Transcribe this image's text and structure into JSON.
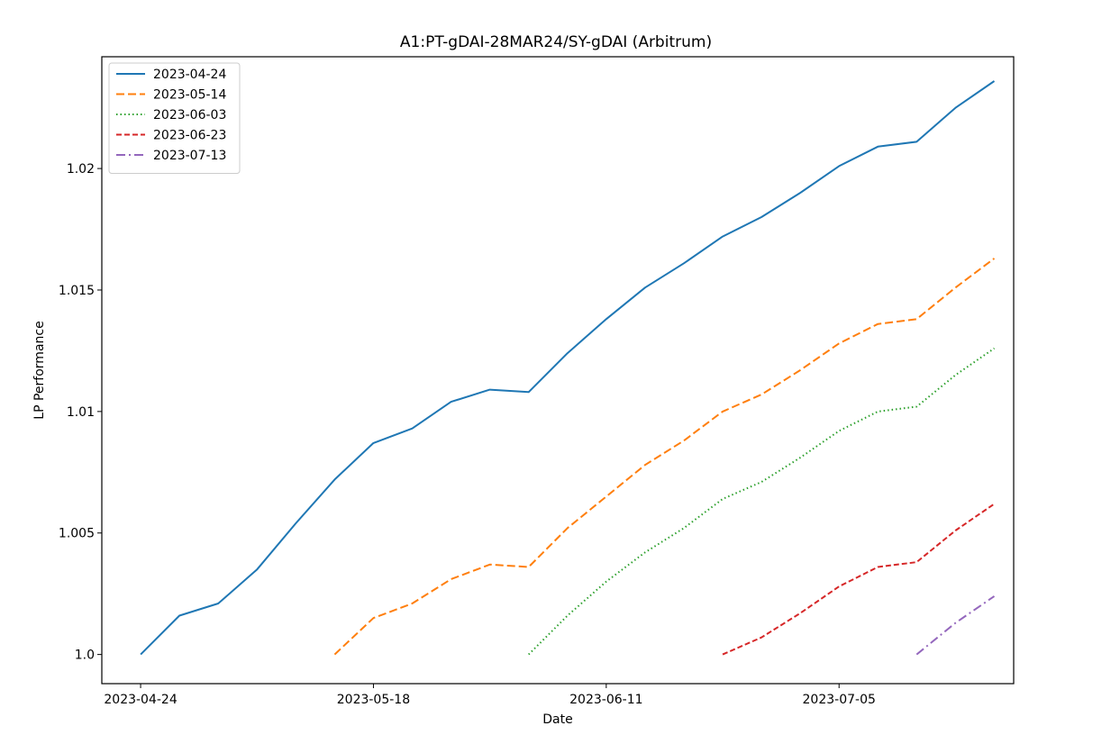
{
  "chart_data": {
    "type": "line",
    "title": "A1:PT-gDAI-28MAR24/SY-gDAI (Arbitrum)",
    "xlabel": "Date",
    "ylabel": "LP Performance",
    "x_tick_labels": [
      "2023-04-24",
      "2023-05-18",
      "2023-06-11",
      "2023-07-05"
    ],
    "y_tick_labels": [
      "1.0",
      "1.005",
      "1.01",
      "1.015",
      "1.02"
    ],
    "xlim": [
      "2023-04-20",
      "2023-07-23"
    ],
    "ylim": [
      0.9988,
      1.0246
    ],
    "grid": false,
    "legend_position": "upper left",
    "series": [
      {
        "name": "2023-04-24",
        "color": "#1f77b4",
        "dash": "solid",
        "x": [
          "2023-04-24",
          "2023-04-28",
          "2023-05-02",
          "2023-05-06",
          "2023-05-10",
          "2023-05-14",
          "2023-05-18",
          "2023-05-22",
          "2023-05-26",
          "2023-05-30",
          "2023-06-03",
          "2023-06-07",
          "2023-06-11",
          "2023-06-15",
          "2023-06-19",
          "2023-06-23",
          "2023-06-27",
          "2023-07-01",
          "2023-07-05",
          "2023-07-09",
          "2023-07-13",
          "2023-07-17",
          "2023-07-21"
        ],
        "y": [
          1.0,
          1.0016,
          1.0021,
          1.0035,
          1.0054,
          1.0072,
          1.0087,
          1.0093,
          1.0104,
          1.0109,
          1.0108,
          1.0124,
          1.0138,
          1.0151,
          1.0161,
          1.0172,
          1.018,
          1.019,
          1.0201,
          1.0209,
          1.0211,
          1.0225,
          1.0236
        ]
      },
      {
        "name": "2023-05-14",
        "color": "#ff7f0e",
        "dash": "dashed",
        "x": [
          "2023-05-14",
          "2023-05-18",
          "2023-05-22",
          "2023-05-26",
          "2023-05-30",
          "2023-06-03",
          "2023-06-07",
          "2023-06-11",
          "2023-06-15",
          "2023-06-19",
          "2023-06-23",
          "2023-06-27",
          "2023-07-01",
          "2023-07-05",
          "2023-07-09",
          "2023-07-13",
          "2023-07-17",
          "2023-07-21"
        ],
        "y": [
          1.0,
          1.0015,
          1.0021,
          1.0031,
          1.0037,
          1.0036,
          1.0052,
          1.0065,
          1.0078,
          1.0088,
          1.01,
          1.0107,
          1.0117,
          1.0128,
          1.0136,
          1.0138,
          1.0151,
          1.0163
        ]
      },
      {
        "name": "2023-06-03",
        "color": "#2ca02c",
        "dash": "dotted",
        "x": [
          "2023-06-03",
          "2023-06-07",
          "2023-06-11",
          "2023-06-15",
          "2023-06-19",
          "2023-06-23",
          "2023-06-27",
          "2023-07-01",
          "2023-07-05",
          "2023-07-09",
          "2023-07-13",
          "2023-07-17",
          "2023-07-21"
        ],
        "y": [
          1.0,
          1.0016,
          1.003,
          1.0042,
          1.0052,
          1.0064,
          1.0071,
          1.0081,
          1.0092,
          1.01,
          1.0102,
          1.0115,
          1.0126
        ]
      },
      {
        "name": "2023-06-23",
        "color": "#d62728",
        "dash": "dashdot-short",
        "x": [
          "2023-06-23",
          "2023-06-27",
          "2023-07-01",
          "2023-07-05",
          "2023-07-09",
          "2023-07-13",
          "2023-07-17",
          "2023-07-21"
        ],
        "y": [
          1.0,
          1.0007,
          1.0017,
          1.0028,
          1.0036,
          1.0038,
          1.0051,
          1.0062
        ]
      },
      {
        "name": "2023-07-13",
        "color": "#9467bd",
        "dash": "dashdot",
        "x": [
          "2023-07-13",
          "2023-07-17",
          "2023-07-21"
        ],
        "y": [
          1.0,
          1.0013,
          1.0024
        ]
      }
    ]
  }
}
